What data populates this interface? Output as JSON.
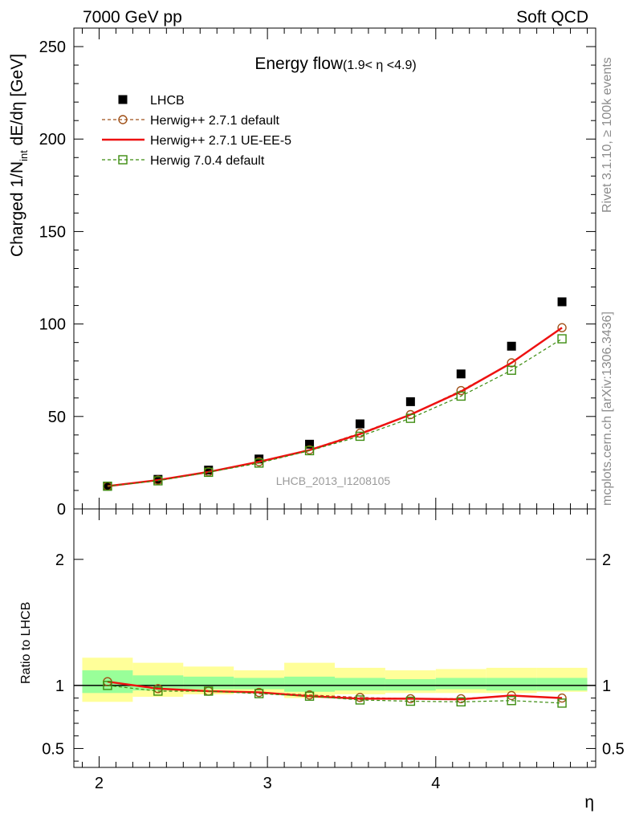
{
  "header": {
    "left": "7000 GeV pp",
    "right": "Soft QCD"
  },
  "side_labels": {
    "rivet": "Rivet 3.1.10, ≥ 100k events",
    "mcplots": "mcplots.cern.ch [arXiv:1306.3436]"
  },
  "watermark": "LHCB_2013_I1208105",
  "colors": {
    "data": "#000000",
    "herwig_default": "#a0521a",
    "herwig_ueee5": "#ee1111",
    "herwig7": "#3c8c0f",
    "band_yellow": "#ffff99",
    "band_green": "#99ff99"
  },
  "chart_data": [
    {
      "type": "scatter",
      "title": "Energy flow",
      "title_suffix": "(1.9< η <4.9)",
      "ylabel_main": "Charged 1/N",
      "ylabel_sub": "int",
      "ylabel_tail": " dE/dη [GeV]",
      "ylim": [
        0,
        260
      ],
      "xlim": [
        1.85,
        4.95
      ],
      "yticks": [
        0,
        50,
        100,
        150,
        200,
        250
      ],
      "ytick_labels": [
        "0",
        "50",
        "100",
        "150",
        "200",
        "250"
      ],
      "legend_position": "top-left",
      "x": [
        2.05,
        2.35,
        2.65,
        2.95,
        3.25,
        3.55,
        3.85,
        4.15,
        4.45,
        4.75
      ],
      "series": [
        {
          "name": "LHCB",
          "style": "markers",
          "values": [
            12.3,
            16.0,
            21.0,
            27.0,
            35.0,
            46.0,
            58.0,
            73.0,
            88.0,
            112.0
          ]
        },
        {
          "name": "Herwig++ 2.7.1 default",
          "style": "circle-dashed",
          "values": [
            12.3,
            15.6,
            20.1,
            25.5,
            32.0,
            41.0,
            51.0,
            64.0,
            79.0,
            98.0
          ]
        },
        {
          "name": "Herwig++ 2.7.1 UE-EE-5",
          "style": "solid",
          "values": [
            12.3,
            15.6,
            20.0,
            25.5,
            31.8,
            40.5,
            51.0,
            63.5,
            79.0,
            98.0
          ]
        },
        {
          "name": "Herwig 7.0.4 default",
          "style": "square-dashed",
          "values": [
            12.3,
            15.2,
            19.8,
            24.8,
            31.5,
            39.3,
            49.0,
            61.0,
            75.0,
            92.0
          ]
        }
      ]
    },
    {
      "type": "line",
      "ylabel": "Ratio to LHCB",
      "xlabel": "η",
      "ylim": [
        0.35,
        2.4
      ],
      "xlim": [
        1.85,
        4.95
      ],
      "yticks": [
        0.5,
        1,
        2
      ],
      "ytick_labels": [
        "0.5",
        "1",
        "2"
      ],
      "xticks": [
        2,
        3,
        4
      ],
      "xtick_labels": [
        "2",
        "3",
        "4"
      ],
      "bin_edges": [
        1.9,
        2.2,
        2.5,
        2.8,
        3.1,
        3.4,
        3.7,
        4.0,
        4.3,
        4.6,
        4.9
      ],
      "band_yellow_lo": [
        0.87,
        0.91,
        0.93,
        0.94,
        0.9,
        0.93,
        0.94,
        0.94,
        0.94,
        0.95
      ],
      "band_yellow_hi": [
        1.22,
        1.18,
        1.15,
        1.12,
        1.18,
        1.14,
        1.12,
        1.13,
        1.14,
        1.14
      ],
      "band_green_lo": [
        0.94,
        0.96,
        0.97,
        0.97,
        0.95,
        0.96,
        0.96,
        0.97,
        0.96,
        0.96
      ],
      "band_green_hi": [
        1.12,
        1.08,
        1.07,
        1.06,
        1.07,
        1.06,
        1.05,
        1.06,
        1.06,
        1.06
      ],
      "x": [
        2.05,
        2.35,
        2.65,
        2.95,
        3.25,
        3.55,
        3.85,
        4.15,
        4.45,
        4.75
      ],
      "series": [
        {
          "name": "Herwig++ 2.7.1 default",
          "style": "circle-dashed",
          "values": [
            1.03,
            0.975,
            0.955,
            0.945,
            0.925,
            0.905,
            0.895,
            0.895,
            0.92,
            0.9
          ]
        },
        {
          "name": "Herwig++ 2.7.1 UE-EE-5",
          "style": "solid",
          "values": [
            1.03,
            0.975,
            0.955,
            0.945,
            0.915,
            0.895,
            0.895,
            0.89,
            0.92,
            0.9
          ]
        },
        {
          "name": "Herwig 7.0.4 default",
          "style": "square-dashed",
          "values": [
            1.0,
            0.955,
            0.955,
            0.935,
            0.915,
            0.885,
            0.875,
            0.87,
            0.88,
            0.86
          ]
        }
      ]
    }
  ]
}
